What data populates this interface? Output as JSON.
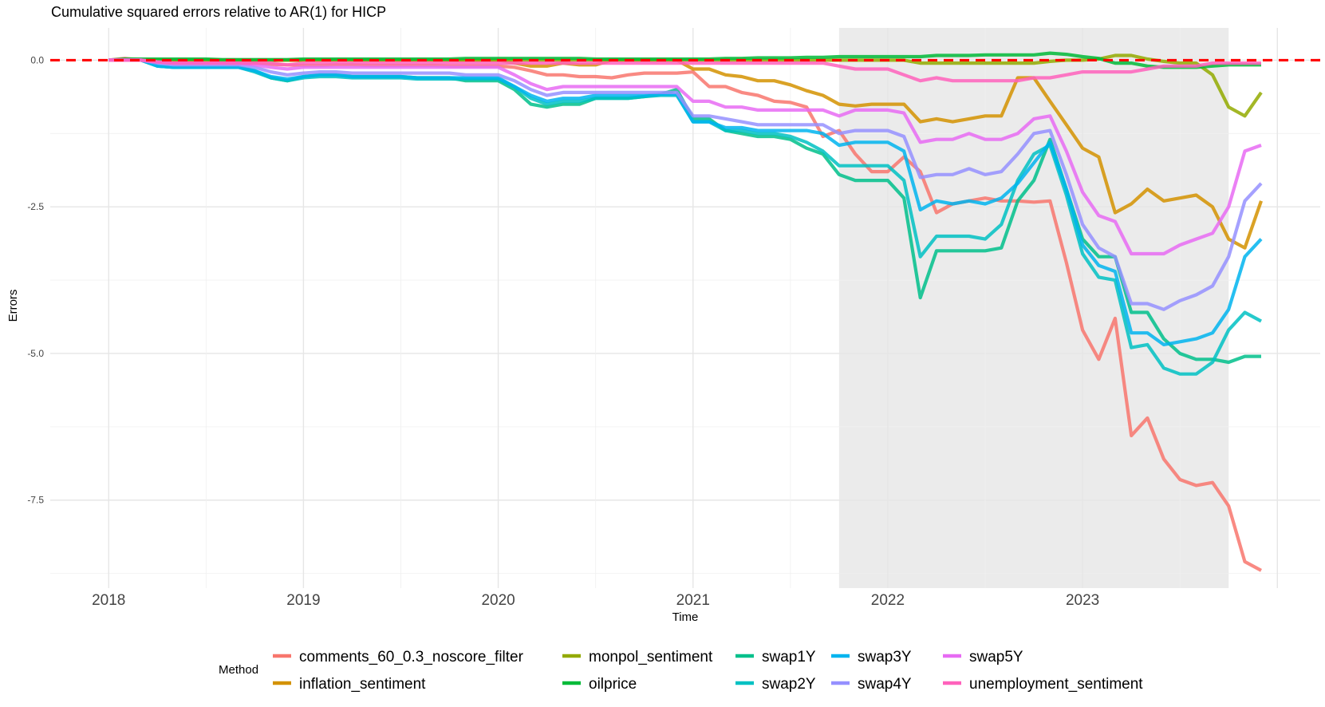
{
  "chart_data": {
    "type": "line",
    "title": "Cumulative squared errors relative to AR(1) for HICP",
    "xlabel": "Time",
    "ylabel": "Errors",
    "x_ticks": [
      "2018",
      "2019",
      "2020",
      "2021",
      "2022",
      "2023"
    ],
    "y_ticks": [
      "0.0",
      "-2.5",
      "-5.0",
      "-7.5"
    ],
    "ylim": [
      -9.0,
      0.55
    ],
    "xlim": [
      2017.7,
      2024.22
    ],
    "grid": true,
    "shaded_period": [
      2021.75,
      2023.75
    ],
    "reference_line": {
      "y": 0.0,
      "color": "#ff0000",
      "style": "dashed"
    },
    "legend": {
      "title": "Method",
      "position": "bottom"
    },
    "x": [
      2018.0,
      2018.083,
      2018.167,
      2018.25,
      2018.333,
      2018.417,
      2018.5,
      2018.583,
      2018.667,
      2018.75,
      2018.833,
      2018.917,
      2019.0,
      2019.083,
      2019.167,
      2019.25,
      2019.333,
      2019.417,
      2019.5,
      2019.583,
      2019.667,
      2019.75,
      2019.833,
      2019.917,
      2020.0,
      2020.083,
      2020.167,
      2020.25,
      2020.333,
      2020.417,
      2020.5,
      2020.583,
      2020.667,
      2020.75,
      2020.833,
      2020.917,
      2021.0,
      2021.083,
      2021.167,
      2021.25,
      2021.333,
      2021.417,
      2021.5,
      2021.583,
      2021.667,
      2021.75,
      2021.833,
      2021.917,
      2022.0,
      2022.083,
      2022.167,
      2022.25,
      2022.333,
      2022.417,
      2022.5,
      2022.583,
      2022.667,
      2022.75,
      2022.833,
      2022.917,
      2023.0,
      2023.083,
      2023.167,
      2023.25,
      2023.333,
      2023.417,
      2023.5,
      2023.583,
      2023.667,
      2023.75,
      2023.833,
      2023.917
    ],
    "series": [
      {
        "name": "comments_60_0.3_noscore_filter",
        "color": "#F8766D",
        "values": [
          0.0,
          0.03,
          0.0,
          -0.02,
          -0.03,
          -0.03,
          -0.03,
          -0.04,
          -0.04,
          -0.05,
          -0.07,
          -0.08,
          -0.09,
          -0.09,
          -0.08,
          -0.08,
          -0.09,
          -0.09,
          -0.09,
          -0.09,
          -0.09,
          -0.1,
          -0.1,
          -0.1,
          -0.1,
          -0.12,
          -0.18,
          -0.25,
          -0.25,
          -0.28,
          -0.28,
          -0.3,
          -0.25,
          -0.22,
          -0.22,
          -0.22,
          -0.2,
          -0.45,
          -0.45,
          -0.55,
          -0.6,
          -0.7,
          -0.72,
          -0.8,
          -1.3,
          -1.2,
          -1.6,
          -1.9,
          -1.9,
          -1.65,
          -1.9,
          -2.6,
          -2.45,
          -2.4,
          -2.35,
          -2.4,
          -2.4,
          -2.42,
          -2.4,
          -3.45,
          -4.6,
          -5.1,
          -4.4,
          -6.4,
          -6.1,
          -6.8,
          -7.15,
          -7.25,
          -7.2,
          -7.6,
          -8.55,
          -8.7
        ]
      },
      {
        "name": "inflation_sentiment",
        "color": "#D39200",
        "values": [
          0.0,
          0.01,
          0.0,
          0.0,
          0.0,
          0.0,
          0.0,
          0.0,
          0.0,
          0.0,
          0.0,
          0.0,
          0.0,
          0.0,
          0.0,
          0.0,
          0.0,
          0.0,
          0.0,
          0.0,
          0.0,
          0.0,
          0.0,
          0.0,
          0.0,
          -0.05,
          -0.1,
          -0.1,
          -0.05,
          -0.08,
          -0.08,
          0.0,
          0.0,
          0.0,
          0.0,
          0.0,
          -0.15,
          -0.15,
          -0.25,
          -0.28,
          -0.35,
          -0.35,
          -0.42,
          -0.52,
          -0.6,
          -0.75,
          -0.78,
          -0.75,
          -0.75,
          -0.75,
          -1.05,
          -1.0,
          -1.05,
          -1.0,
          -0.95,
          -0.95,
          -0.3,
          -0.3,
          -0.7,
          -1.1,
          -1.5,
          -1.65,
          -2.6,
          -2.45,
          -2.2,
          -2.4,
          -2.35,
          -2.3,
          -2.5,
          -3.05,
          -3.2,
          -2.4
        ]
      },
      {
        "name": "monpol_sentiment",
        "color": "#93AA00",
        "values": [
          0.0,
          0.0,
          0.0,
          0.0,
          0.0,
          0.0,
          0.0,
          0.0,
          0.0,
          0.0,
          0.0,
          0.0,
          0.0,
          0.0,
          0.0,
          0.0,
          0.0,
          0.0,
          0.0,
          0.0,
          0.0,
          0.0,
          0.0,
          0.0,
          0.0,
          0.0,
          0.0,
          0.0,
          0.0,
          0.0,
          0.0,
          0.0,
          0.0,
          0.0,
          0.0,
          0.0,
          0.0,
          0.0,
          0.0,
          0.0,
          0.0,
          0.0,
          0.0,
          0.0,
          0.0,
          0.0,
          0.0,
          0.0,
          0.0,
          0.0,
          -0.05,
          -0.05,
          -0.05,
          -0.05,
          -0.05,
          -0.05,
          -0.05,
          -0.05,
          -0.02,
          0.0,
          0.0,
          0.02,
          0.08,
          0.08,
          0.02,
          -0.02,
          -0.05,
          -0.05,
          -0.25,
          -0.8,
          -0.95,
          -0.55
        ]
      },
      {
        "name": "oilprice",
        "color": "#00BA38",
        "values": [
          0.0,
          0.02,
          0.02,
          0.02,
          0.02,
          0.02,
          0.02,
          0.01,
          0.01,
          0.01,
          0.01,
          0.01,
          0.02,
          0.02,
          0.02,
          0.02,
          0.02,
          0.02,
          0.02,
          0.02,
          0.02,
          0.02,
          0.03,
          0.03,
          0.03,
          0.03,
          0.03,
          0.03,
          0.03,
          0.03,
          0.02,
          0.02,
          0.02,
          0.02,
          0.02,
          0.02,
          0.02,
          0.02,
          0.03,
          0.03,
          0.04,
          0.04,
          0.04,
          0.05,
          0.05,
          0.06,
          0.06,
          0.06,
          0.06,
          0.06,
          0.06,
          0.08,
          0.08,
          0.08,
          0.09,
          0.09,
          0.09,
          0.09,
          0.12,
          0.1,
          0.06,
          0.03,
          -0.05,
          -0.05,
          -0.1,
          -0.12,
          -0.12,
          -0.12,
          -0.1,
          -0.08,
          -0.08,
          -0.08
        ]
      },
      {
        "name": "swap1Y",
        "color": "#00C08B",
        "values": [
          0.0,
          0.0,
          0.0,
          -0.1,
          -0.12,
          -0.12,
          -0.12,
          -0.12,
          -0.12,
          -0.18,
          -0.3,
          -0.35,
          -0.28,
          -0.25,
          -0.25,
          -0.28,
          -0.28,
          -0.28,
          -0.28,
          -0.3,
          -0.3,
          -0.3,
          -0.35,
          -0.35,
          -0.35,
          -0.5,
          -0.75,
          -0.8,
          -0.75,
          -0.75,
          -0.65,
          -0.65,
          -0.65,
          -0.62,
          -0.58,
          -0.5,
          -1.0,
          -1.0,
          -1.2,
          -1.25,
          -1.3,
          -1.3,
          -1.35,
          -1.5,
          -1.6,
          -1.95,
          -2.05,
          -2.05,
          -2.05,
          -2.35,
          -4.05,
          -3.25,
          -3.25,
          -3.25,
          -3.25,
          -3.2,
          -2.4,
          -2.05,
          -1.35,
          -2.2,
          -3.05,
          -3.35,
          -3.35,
          -4.3,
          -4.3,
          -4.75,
          -5.0,
          -5.1,
          -5.1,
          -5.15,
          -5.05,
          -5.05
        ]
      },
      {
        "name": "swap2Y",
        "color": "#00C1C3",
        "values": [
          0.0,
          0.0,
          0.0,
          -0.1,
          -0.12,
          -0.12,
          -0.12,
          -0.12,
          -0.12,
          -0.2,
          -0.3,
          -0.35,
          -0.3,
          -0.28,
          -0.28,
          -0.3,
          -0.3,
          -0.3,
          -0.3,
          -0.32,
          -0.32,
          -0.32,
          -0.32,
          -0.32,
          -0.32,
          -0.45,
          -0.65,
          -0.75,
          -0.7,
          -0.7,
          -0.65,
          -0.65,
          -0.65,
          -0.62,
          -0.6,
          -0.6,
          -1.05,
          -1.05,
          -1.2,
          -1.2,
          -1.25,
          -1.25,
          -1.3,
          -1.4,
          -1.55,
          -1.8,
          -1.8,
          -1.8,
          -1.8,
          -2.05,
          -3.35,
          -3.0,
          -3.0,
          -3.0,
          -3.05,
          -2.8,
          -2.05,
          -1.6,
          -1.45,
          -2.3,
          -3.3,
          -3.7,
          -3.75,
          -4.9,
          -4.85,
          -5.25,
          -5.35,
          -5.35,
          -5.15,
          -4.6,
          -4.3,
          -4.45
        ]
      },
      {
        "name": "swap3Y",
        "color": "#00B4EF",
        "values": [
          0.0,
          0.0,
          0.0,
          -0.1,
          -0.12,
          -0.12,
          -0.12,
          -0.12,
          -0.12,
          -0.18,
          -0.28,
          -0.32,
          -0.28,
          -0.25,
          -0.25,
          -0.28,
          -0.28,
          -0.28,
          -0.28,
          -0.3,
          -0.3,
          -0.3,
          -0.3,
          -0.3,
          -0.3,
          -0.45,
          -0.6,
          -0.7,
          -0.65,
          -0.65,
          -0.6,
          -0.6,
          -0.6,
          -0.6,
          -0.58,
          -0.58,
          -1.05,
          -1.05,
          -1.15,
          -1.15,
          -1.2,
          -1.2,
          -1.2,
          -1.2,
          -1.25,
          -1.45,
          -1.4,
          -1.4,
          -1.4,
          -1.55,
          -2.55,
          -2.4,
          -2.45,
          -2.4,
          -2.45,
          -2.35,
          -2.1,
          -1.75,
          -1.4,
          -2.2,
          -3.15,
          -3.5,
          -3.6,
          -4.65,
          -4.65,
          -4.85,
          -4.8,
          -4.75,
          -4.65,
          -4.25,
          -3.35,
          -3.05
        ]
      },
      {
        "name": "swap4Y",
        "color": "#9590FF",
        "values": [
          0.0,
          0.0,
          0.0,
          -0.05,
          -0.08,
          -0.08,
          -0.08,
          -0.08,
          -0.08,
          -0.12,
          -0.2,
          -0.25,
          -0.22,
          -0.2,
          -0.2,
          -0.22,
          -0.22,
          -0.22,
          -0.22,
          -0.22,
          -0.22,
          -0.22,
          -0.25,
          -0.25,
          -0.25,
          -0.35,
          -0.5,
          -0.6,
          -0.55,
          -0.55,
          -0.55,
          -0.55,
          -0.55,
          -0.55,
          -0.55,
          -0.55,
          -0.95,
          -0.95,
          -1.0,
          -1.05,
          -1.1,
          -1.1,
          -1.1,
          -1.1,
          -1.1,
          -1.25,
          -1.2,
          -1.2,
          -1.2,
          -1.3,
          -2.0,
          -1.95,
          -1.95,
          -1.85,
          -1.95,
          -1.9,
          -1.6,
          -1.25,
          -1.2,
          -1.95,
          -2.8,
          -3.2,
          -3.35,
          -4.15,
          -4.15,
          -4.25,
          -4.1,
          -4.0,
          -3.85,
          -3.35,
          -2.4,
          -2.1
        ]
      },
      {
        "name": "swap5Y",
        "color": "#E76BF3",
        "values": [
          0.0,
          0.0,
          0.0,
          -0.03,
          -0.05,
          -0.05,
          -0.05,
          -0.05,
          -0.05,
          -0.08,
          -0.12,
          -0.15,
          -0.12,
          -0.12,
          -0.12,
          -0.12,
          -0.12,
          -0.12,
          -0.12,
          -0.12,
          -0.12,
          -0.12,
          -0.12,
          -0.12,
          -0.12,
          -0.25,
          -0.4,
          -0.5,
          -0.45,
          -0.45,
          -0.45,
          -0.45,
          -0.45,
          -0.45,
          -0.45,
          -0.45,
          -0.7,
          -0.7,
          -0.8,
          -0.8,
          -0.85,
          -0.85,
          -0.85,
          -0.85,
          -0.85,
          -0.95,
          -0.85,
          -0.85,
          -0.85,
          -0.9,
          -1.4,
          -1.35,
          -1.35,
          -1.25,
          -1.35,
          -1.35,
          -1.25,
          -1.0,
          -0.95,
          -1.55,
          -2.25,
          -2.65,
          -2.75,
          -3.3,
          -3.3,
          -3.3,
          -3.15,
          -3.05,
          -2.95,
          -2.5,
          -1.55,
          -1.45
        ]
      },
      {
        "name": "unemployment_sentiment",
        "color": "#FF62BC",
        "values": [
          0.0,
          0.0,
          0.0,
          -0.03,
          -0.05,
          -0.05,
          -0.05,
          -0.05,
          -0.05,
          -0.05,
          -0.05,
          -0.08,
          -0.05,
          -0.05,
          -0.05,
          -0.05,
          -0.05,
          -0.05,
          -0.05,
          -0.05,
          -0.05,
          -0.05,
          -0.05,
          -0.05,
          -0.05,
          -0.05,
          -0.05,
          -0.05,
          -0.05,
          -0.05,
          -0.05,
          -0.05,
          -0.05,
          -0.05,
          -0.05,
          -0.05,
          -0.05,
          -0.05,
          -0.05,
          -0.05,
          -0.05,
          -0.05,
          -0.05,
          -0.05,
          -0.05,
          -0.1,
          -0.15,
          -0.15,
          -0.15,
          -0.25,
          -0.35,
          -0.3,
          -0.35,
          -0.35,
          -0.35,
          -0.35,
          -0.35,
          -0.3,
          -0.3,
          -0.25,
          -0.2,
          -0.2,
          -0.2,
          -0.2,
          -0.15,
          -0.1,
          -0.1,
          -0.1,
          -0.05,
          -0.05,
          -0.05,
          -0.05
        ]
      }
    ]
  }
}
